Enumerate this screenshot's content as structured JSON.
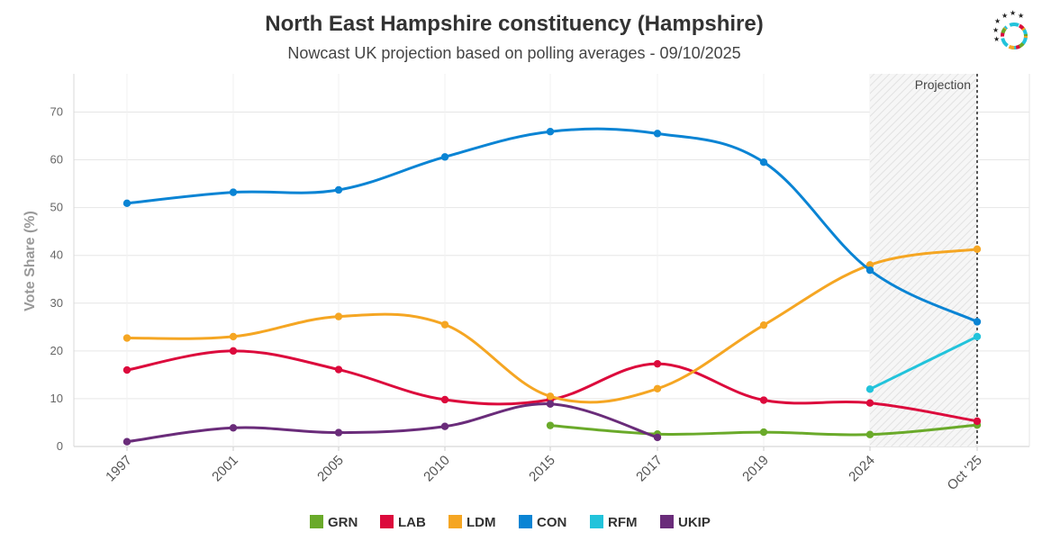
{
  "chart_data": {
    "type": "line",
    "title": "North East Hampshire constituency (Hampshire)",
    "subtitle": "Nowcast UK projection based on polling averages - 09/10/2025",
    "ylabel": "Vote Share (%)",
    "xlabel": "",
    "ylim": [
      0,
      78
    ],
    "yticks": [
      0,
      10,
      20,
      30,
      40,
      50,
      60,
      70
    ],
    "categories": [
      "1997",
      "2001",
      "2005",
      "2010",
      "2015",
      "2017",
      "2019",
      "2024",
      "Oct '25"
    ],
    "projection_label": "Projection",
    "projection_range": [
      "2024",
      "Oct '25"
    ],
    "grid": true,
    "legend_position": "bottom",
    "series": [
      {
        "name": "GRN",
        "color": "#6aaa2a",
        "values": [
          null,
          null,
          null,
          null,
          4.4,
          2.6,
          3.0,
          2.5,
          4.5
        ]
      },
      {
        "name": "LAB",
        "color": "#dc0a3c",
        "values": [
          16.0,
          20.0,
          16.1,
          9.8,
          9.8,
          17.3,
          9.7,
          9.1,
          5.3
        ]
      },
      {
        "name": "LDM",
        "color": "#f5a623",
        "values": [
          22.7,
          23.0,
          27.2,
          25.5,
          10.5,
          12.1,
          25.4,
          38.0,
          41.3
        ]
      },
      {
        "name": "CON",
        "color": "#0a84d4",
        "values": [
          50.9,
          53.2,
          53.7,
          60.6,
          65.9,
          65.5,
          59.5,
          36.9,
          26.1
        ]
      },
      {
        "name": "RFM",
        "color": "#22c3db",
        "values": [
          null,
          null,
          null,
          null,
          null,
          null,
          null,
          12.0,
          23.0
        ]
      },
      {
        "name": "UKIP",
        "color": "#6a2c7a",
        "values": [
          1.0,
          3.9,
          2.9,
          4.2,
          8.9,
          1.9,
          null,
          null,
          null
        ]
      }
    ]
  }
}
